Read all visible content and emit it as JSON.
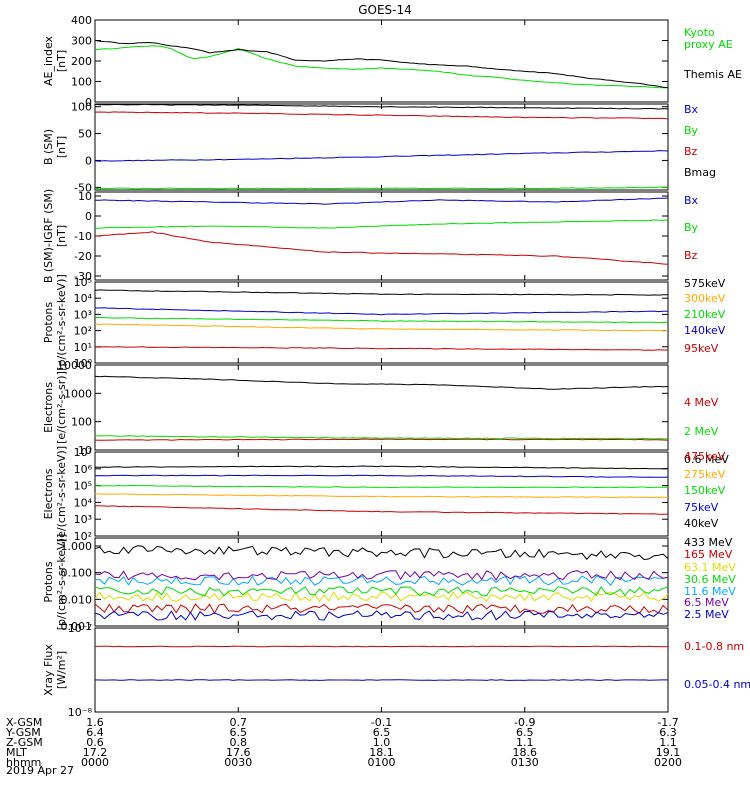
{
  "title": "GOES-14",
  "date_label": "2019 Apr 27",
  "colors": {
    "black": "#000000",
    "green": "#00dd00",
    "red": "#cc0000",
    "blue": "#0000cc",
    "orange": "#ffaa00",
    "cyan": "#00aaff",
    "purple": "#7700aa",
    "yellow": "#dddd00"
  },
  "ephemeris": {
    "row_labels": [
      "X-GSM",
      "Y-GSM",
      "Z-GSM",
      "MLT",
      "hhmm"
    ],
    "columns": [
      [
        "1.6",
        "6.4",
        "0.6",
        "17.2",
        "0000"
      ],
      [
        "0.7",
        "6.5",
        "0.8",
        "17.6",
        "0030"
      ],
      [
        "-0.1",
        "6.5",
        "1.0",
        "18.1",
        "0100"
      ],
      [
        "-0.9",
        "6.5",
        "1.1",
        "18.6",
        "0130"
      ],
      [
        "-1.7",
        "6.3",
        "1.1",
        "19.1",
        "0200"
      ]
    ]
  },
  "chart_data": [
    {
      "type": "line",
      "ylabel": [
        "AE_index",
        "[nT]"
      ],
      "ylim": [
        0,
        400
      ],
      "log": false,
      "ticks": [
        "0",
        "100",
        "200",
        "300",
        "400"
      ],
      "series": [
        {
          "name": "Kyoto proxy AE",
          "legend": [
            "Kyoto",
            "proxy AE"
          ],
          "color": "green",
          "x": [
            0.0,
            0.05,
            0.1,
            0.13,
            0.17,
            0.2,
            0.25,
            0.3,
            0.35,
            0.4,
            0.45,
            0.5,
            0.55,
            0.6,
            0.65,
            0.7,
            0.75,
            0.8,
            0.85,
            0.9,
            0.95,
            1.0
          ],
          "y": [
            255,
            265,
            275,
            265,
            210,
            220,
            260,
            210,
            175,
            165,
            160,
            165,
            160,
            150,
            130,
            120,
            105,
            95,
            85,
            80,
            75,
            70
          ]
        },
        {
          "name": "Themis AE",
          "legend": [
            "Themis AE"
          ],
          "color": "black",
          "x": [
            0.0,
            0.05,
            0.1,
            0.13,
            0.17,
            0.2,
            0.25,
            0.3,
            0.35,
            0.4,
            0.45,
            0.5,
            0.55,
            0.6,
            0.65,
            0.7,
            0.75,
            0.8,
            0.85,
            0.9,
            0.95,
            1.0
          ],
          "y": [
            300,
            285,
            290,
            275,
            260,
            240,
            255,
            245,
            205,
            200,
            210,
            205,
            190,
            180,
            175,
            160,
            150,
            140,
            120,
            105,
            90,
            70
          ]
        }
      ]
    },
    {
      "type": "line",
      "ylabel": [
        "B (SM)",
        "[nT]"
      ],
      "ylim": [
        -55,
        105
      ],
      "log": false,
      "ticks": [
        "-50",
        "0",
        "50",
        "100"
      ],
      "series": [
        {
          "name": "Bx",
          "color": "blue",
          "x": [
            0,
            0.25,
            0.5,
            0.75,
            1
          ],
          "y": [
            -1,
            2,
            7,
            13,
            18
          ]
        },
        {
          "name": "By",
          "color": "green",
          "x": [
            0,
            0.25,
            0.5,
            0.75,
            1
          ],
          "y": [
            -52,
            -52,
            -52,
            -52,
            -50
          ]
        },
        {
          "name": "Bz",
          "color": "red",
          "x": [
            0,
            0.25,
            0.5,
            0.75,
            1
          ],
          "y": [
            90,
            88,
            84,
            80,
            78
          ]
        },
        {
          "name": "Bmag",
          "color": "black",
          "x": [
            0,
            0.25,
            0.5,
            0.75,
            1
          ],
          "y": [
            104,
            103,
            100,
            98,
            96
          ]
        }
      ]
    },
    {
      "type": "line",
      "ylabel": [
        "B (SM)-IGRF (SM)",
        "[nT]"
      ],
      "ylim": [
        -32,
        12
      ],
      "log": false,
      "ticks": [
        "-30",
        "-20",
        "-10",
        "0",
        "10"
      ],
      "series": [
        {
          "name": "Bx",
          "color": "blue",
          "x": [
            0,
            0.2,
            0.4,
            0.6,
            0.8,
            1
          ],
          "y": [
            8,
            7,
            6,
            8,
            7,
            9
          ]
        },
        {
          "name": "By",
          "color": "green",
          "x": [
            0,
            0.2,
            0.4,
            0.6,
            0.8,
            1
          ],
          "y": [
            -6,
            -5,
            -6,
            -4,
            -3,
            -2
          ]
        },
        {
          "name": "Bz",
          "color": "red",
          "x": [
            0,
            0.1,
            0.2,
            0.4,
            0.6,
            0.8,
            1
          ],
          "y": [
            -10,
            -8,
            -13,
            -18,
            -19,
            -20,
            -24
          ]
        }
      ]
    },
    {
      "type": "line",
      "ylabel": [
        "Protons",
        "[p/(cm²-s-sr-keV)]"
      ],
      "ylim": [
        0,
        5
      ],
      "log": true,
      "ticks": [
        "10⁰",
        "10¹",
        "10²",
        "10³",
        "10⁴",
        "10⁵"
      ],
      "series": [
        {
          "name": "575keV",
          "color": "black",
          "x": [
            0,
            0.5,
            1
          ],
          "y": [
            4.5,
            4.25,
            4.2
          ]
        },
        {
          "name": "300keV",
          "color": "orange",
          "x": [
            0,
            0.5,
            1
          ],
          "y": [
            2.4,
            2.1,
            2.0
          ]
        },
        {
          "name": "210keV",
          "color": "green",
          "x": [
            0,
            0.5,
            1
          ],
          "y": [
            2.8,
            2.6,
            2.5
          ]
        },
        {
          "name": "140keV",
          "color": "blue",
          "x": [
            0,
            0.5,
            1
          ],
          "y": [
            3.4,
            3.0,
            3.2
          ]
        },
        {
          "name": "95keV",
          "color": "red",
          "x": [
            0,
            0.5,
            1
          ],
          "y": [
            1.0,
            0.9,
            0.8
          ]
        }
      ]
    },
    {
      "type": "line",
      "ylabel": [
        "Electrons",
        "[e/(cm²-s-sr)]"
      ],
      "ylim": [
        1,
        4
      ],
      "log": true,
      "ticks": [
        "10",
        "100",
        "1000",
        "10000"
      ],
      "series": [
        {
          "name": "4 MeV",
          "color": "red",
          "x": [
            0,
            0.5,
            1
          ],
          "y": [
            1.35,
            1.38,
            1.36
          ]
        },
        {
          "name": "2 MeV",
          "color": "green",
          "x": [
            0,
            0.5,
            1
          ],
          "y": [
            1.5,
            1.42,
            1.4
          ]
        },
        {
          "name": "0.6 MeV",
          "color": "black",
          "x": [
            0,
            0.2,
            0.4,
            0.6,
            0.8,
            1
          ],
          "y": [
            3.6,
            3.5,
            3.35,
            3.3,
            3.15,
            3.25
          ]
        }
      ]
    },
    {
      "type": "line",
      "ylabel": [
        "Electrons",
        "[e/(cm²-s-sr-keV)]"
      ],
      "ylim": [
        2,
        7
      ],
      "log": true,
      "ticks": [
        "10²",
        "10³",
        "10⁴",
        "10⁵",
        "10⁶",
        "10⁷"
      ],
      "series": [
        {
          "name": "475keV",
          "color": "red",
          "x": [
            0,
            0.5,
            1
          ],
          "y": [
            3.8,
            3.45,
            3.3
          ]
        },
        {
          "name": "275keV",
          "color": "orange",
          "x": [
            0,
            0.5,
            1
          ],
          "y": [
            4.5,
            4.35,
            4.3
          ]
        },
        {
          "name": "150keV",
          "color": "green",
          "x": [
            0,
            0.5,
            1
          ],
          "y": [
            5.0,
            4.9,
            4.9
          ]
        },
        {
          "name": "75keV",
          "color": "blue",
          "x": [
            0,
            0.5,
            1
          ],
          "y": [
            5.6,
            5.6,
            5.5
          ]
        },
        {
          "name": "40keV",
          "color": "black",
          "x": [
            0,
            0.5,
            1
          ],
          "y": [
            6.1,
            6.15,
            6.0
          ]
        }
      ]
    },
    {
      "type": "line",
      "ylabel": [
        "Protons",
        "[p/(cm²-s-sr-keV)]"
      ],
      "ylim": [
        -3,
        0.3
      ],
      "log": true,
      "ticks": [
        "0.001",
        "0.010",
        "0.100",
        "1.000"
      ],
      "series": [
        {
          "name": "433 MeV",
          "color": "black",
          "x": [
            0,
            0.5,
            1
          ],
          "y": [
            -0.1,
            -0.25,
            -0.35
          ]
        },
        {
          "name": "165 MeV",
          "color": "red",
          "x": [
            0,
            0.5,
            1
          ],
          "y": [
            -2.35,
            -2.35,
            -2.35
          ]
        },
        {
          "name": "63.1 MeV",
          "color": "yellow",
          "x": [
            0,
            0.5,
            1
          ],
          "y": [
            -1.9,
            -1.9,
            -1.9
          ]
        },
        {
          "name": "30.6 MeV",
          "color": "green",
          "x": [
            0,
            0.5,
            1
          ],
          "y": [
            -1.7,
            -1.7,
            -1.7
          ]
        },
        {
          "name": "11.6 MeV",
          "color": "cyan",
          "x": [
            0,
            0.5,
            1
          ],
          "y": [
            -1.3,
            -1.3,
            -1.3
          ]
        },
        {
          "name": "6.5 MeV",
          "color": "purple",
          "x": [
            0,
            0.5,
            1
          ],
          "y": [
            -1.1,
            -1.1,
            -1.1
          ]
        },
        {
          "name": "2.5 MeV",
          "color": "blue",
          "x": [
            0,
            0.5,
            1
          ],
          "y": [
            -2.6,
            -2.6,
            -2.6
          ]
        }
      ]
    },
    {
      "type": "line",
      "ylabel": [
        "Xray Flux",
        "[W/m²]"
      ],
      "ylim": [
        -8,
        -7
      ],
      "log": true,
      "ticks": [
        "10⁻⁸",
        "10⁻⁷"
      ],
      "series": [
        {
          "name": "0.1-0.8 nm",
          "color": "red",
          "x": [
            0,
            0.5,
            1
          ],
          "y": [
            -7.22,
            -7.22,
            -7.22
          ]
        },
        {
          "name": "0.05-0.4 nm",
          "color": "blue",
          "x": [
            0,
            0.5,
            1
          ],
          "y": [
            -7.62,
            -7.62,
            -7.62
          ]
        }
      ]
    }
  ]
}
